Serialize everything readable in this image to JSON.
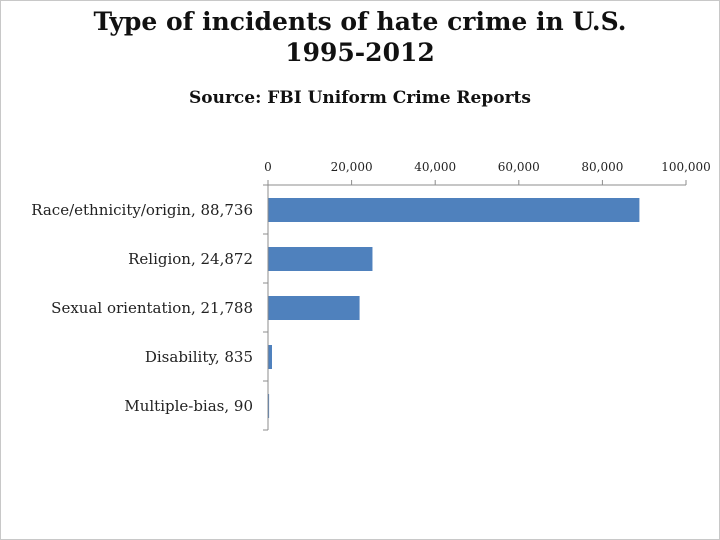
{
  "chart_data": {
    "type": "bar",
    "orientation": "horizontal",
    "title_lines": [
      "Type of incidents of hate crime in U.S.",
      "1995-2012"
    ],
    "subtitle": "Source: FBI Uniform Crime Reports",
    "categories": [
      "Race/ethnicity/origin, 88,736",
      "Religion, 24,872",
      "Sexual orientation, 21,788",
      "Disability, 835",
      "Multiple-bias, 90"
    ],
    "values": [
      88736,
      24872,
      21788,
      835,
      90
    ],
    "xlim": [
      0,
      100000
    ],
    "xticks": [
      0,
      20000,
      40000,
      60000,
      80000,
      100000
    ],
    "xtick_labels": [
      "0",
      "20,000",
      "40,000",
      "60,000",
      "80,000",
      "100,000"
    ],
    "axis_position": "top",
    "grid": false,
    "legend": "none",
    "bar_color": "#4f81bd"
  }
}
